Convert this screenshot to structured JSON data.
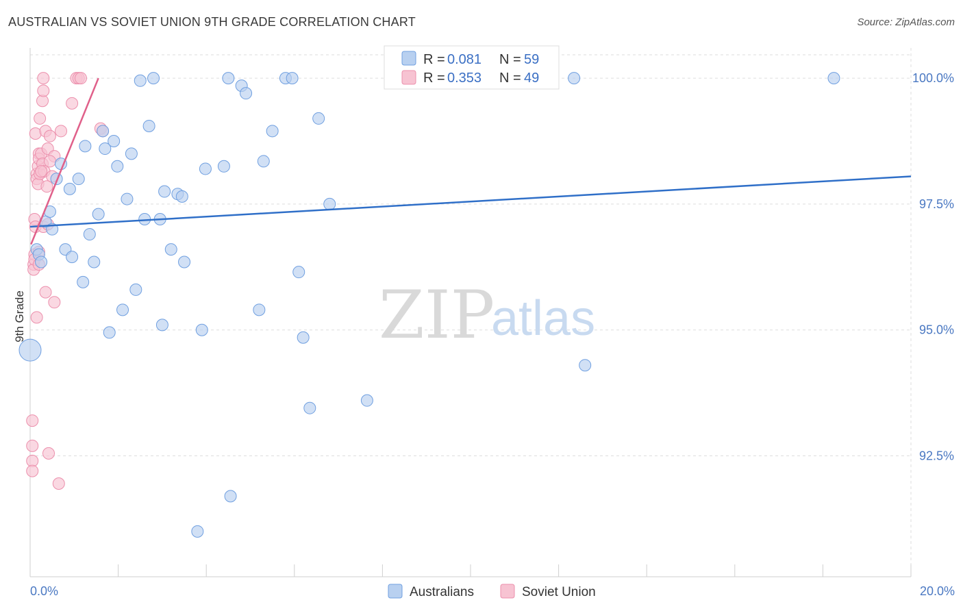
{
  "header": {
    "title": "AUSTRALIAN VS SOVIET UNION 9TH GRADE CORRELATION CHART",
    "source": "Source: ZipAtlas.com"
  },
  "watermark": {
    "zip": "ZIP",
    "atlas": "atlas"
  },
  "legend": {
    "rows": [
      {
        "r_label": "R = ",
        "r_value": "0.081",
        "n_label": "N = ",
        "n_value": "59"
      },
      {
        "r_label": "R = ",
        "r_value": "0.353",
        "n_label": "N = ",
        "n_value": "49"
      }
    ]
  },
  "bottom_legend": {
    "series1": "Australians",
    "series2": "Soviet Union"
  },
  "colors": {
    "blue_fill": "#b8d0f0",
    "blue_stroke": "#6f9fe0",
    "blue_line": "#2f6fc8",
    "pink_fill": "#f7c3d2",
    "pink_stroke": "#ec8fac",
    "pink_line": "#e0608a",
    "grid": "#dddddd",
    "tick_text": "#4a78c2"
  },
  "chart_data": {
    "type": "scatter",
    "title": "AUSTRALIAN VS SOVIET UNION 9TH GRADE CORRELATION CHART",
    "xlabel": "",
    "ylabel": "9th Grade",
    "xlim": [
      0,
      20
    ],
    "ylim": [
      90.1,
      100.6
    ],
    "x_tick_labels": [
      "0.0%",
      "20.0%"
    ],
    "y_ticks": [
      {
        "value": 100.0,
        "label": "100.0%"
      },
      {
        "value": 97.5,
        "label": "97.5%"
      },
      {
        "value": 95.0,
        "label": "95.0%"
      },
      {
        "value": 92.5,
        "label": "92.5%"
      }
    ],
    "series": [
      {
        "name": "Australians",
        "R": 0.081,
        "N": 59,
        "trend": {
          "x": [
            0,
            20
          ],
          "y": [
            97.05,
            98.05
          ]
        },
        "points": [
          {
            "x": 0.0,
            "y": 94.6,
            "big": true
          },
          {
            "x": 0.15,
            "y": 96.6
          },
          {
            "x": 0.2,
            "y": 96.5
          },
          {
            "x": 0.25,
            "y": 96.35
          },
          {
            "x": 0.35,
            "y": 97.15
          },
          {
            "x": 0.45,
            "y": 97.35
          },
          {
            "x": 0.5,
            "y": 97.0
          },
          {
            "x": 0.6,
            "y": 98.0
          },
          {
            "x": 0.7,
            "y": 98.3
          },
          {
            "x": 0.8,
            "y": 96.6
          },
          {
            "x": 0.9,
            "y": 97.8
          },
          {
            "x": 0.95,
            "y": 96.45
          },
          {
            "x": 1.1,
            "y": 98.0
          },
          {
            "x": 1.2,
            "y": 95.95
          },
          {
            "x": 1.25,
            "y": 98.65
          },
          {
            "x": 1.35,
            "y": 96.9
          },
          {
            "x": 1.45,
            "y": 96.35
          },
          {
            "x": 1.55,
            "y": 97.3
          },
          {
            "x": 1.65,
            "y": 98.95
          },
          {
            "x": 1.7,
            "y": 98.6
          },
          {
            "x": 1.8,
            "y": 94.95
          },
          {
            "x": 1.9,
            "y": 98.75
          },
          {
            "x": 1.98,
            "y": 98.25
          },
          {
            "x": 2.1,
            "y": 95.4
          },
          {
            "x": 2.2,
            "y": 97.6
          },
          {
            "x": 2.3,
            "y": 98.5
          },
          {
            "x": 2.4,
            "y": 95.8
          },
          {
            "x": 2.5,
            "y": 99.95
          },
          {
            "x": 2.6,
            "y": 97.2
          },
          {
            "x": 2.7,
            "y": 99.05
          },
          {
            "x": 2.8,
            "y": 100.0
          },
          {
            "x": 2.95,
            "y": 97.2
          },
          {
            "x": 3.0,
            "y": 95.1
          },
          {
            "x": 3.05,
            "y": 97.75
          },
          {
            "x": 3.2,
            "y": 96.6
          },
          {
            "x": 3.35,
            "y": 97.7
          },
          {
            "x": 3.45,
            "y": 97.65
          },
          {
            "x": 3.5,
            "y": 96.35
          },
          {
            "x": 3.8,
            "y": 91.0
          },
          {
            "x": 3.9,
            "y": 95.0
          },
          {
            "x": 3.98,
            "y": 98.2
          },
          {
            "x": 4.4,
            "y": 98.25
          },
          {
            "x": 4.5,
            "y": 100.0
          },
          {
            "x": 4.55,
            "y": 91.7
          },
          {
            "x": 4.8,
            "y": 99.85
          },
          {
            "x": 4.9,
            "y": 99.7
          },
          {
            "x": 5.2,
            "y": 95.4
          },
          {
            "x": 5.3,
            "y": 98.35
          },
          {
            "x": 5.5,
            "y": 98.95
          },
          {
            "x": 5.8,
            "y": 100.0
          },
          {
            "x": 5.95,
            "y": 100.0
          },
          {
            "x": 6.1,
            "y": 96.15
          },
          {
            "x": 6.2,
            "y": 94.85
          },
          {
            "x": 6.35,
            "y": 93.45
          },
          {
            "x": 6.55,
            "y": 99.2
          },
          {
            "x": 6.8,
            "y": 97.5
          },
          {
            "x": 7.65,
            "y": 93.6
          },
          {
            "x": 12.35,
            "y": 100.0
          },
          {
            "x": 12.6,
            "y": 94.3
          },
          {
            "x": 18.25,
            "y": 100.0
          }
        ]
      },
      {
        "name": "Soviet Union",
        "R": 0.353,
        "N": 49,
        "trend": {
          "x": [
            0.02,
            1.55
          ],
          "y": [
            96.7,
            100.0
          ]
        },
        "points": [
          {
            "x": 0.05,
            "y": 93.2
          },
          {
            "x": 0.05,
            "y": 92.7
          },
          {
            "x": 0.05,
            "y": 92.4
          },
          {
            "x": 0.05,
            "y": 92.2
          },
          {
            "x": 0.08,
            "y": 96.3
          },
          {
            "x": 0.08,
            "y": 96.2
          },
          {
            "x": 0.1,
            "y": 97.2
          },
          {
            "x": 0.1,
            "y": 96.5
          },
          {
            "x": 0.1,
            "y": 96.4
          },
          {
            "x": 0.12,
            "y": 98.9
          },
          {
            "x": 0.12,
            "y": 97.05
          },
          {
            "x": 0.15,
            "y": 98.1
          },
          {
            "x": 0.15,
            "y": 98.0
          },
          {
            "x": 0.15,
            "y": 95.25
          },
          {
            "x": 0.18,
            "y": 98.25
          },
          {
            "x": 0.18,
            "y": 97.9
          },
          {
            "x": 0.2,
            "y": 98.5
          },
          {
            "x": 0.2,
            "y": 98.4
          },
          {
            "x": 0.2,
            "y": 96.55
          },
          {
            "x": 0.2,
            "y": 96.3
          },
          {
            "x": 0.22,
            "y": 99.2
          },
          {
            "x": 0.22,
            "y": 98.1
          },
          {
            "x": 0.25,
            "y": 98.5
          },
          {
            "x": 0.28,
            "y": 99.55
          },
          {
            "x": 0.28,
            "y": 98.3
          },
          {
            "x": 0.3,
            "y": 100.0
          },
          {
            "x": 0.3,
            "y": 99.75
          },
          {
            "x": 0.3,
            "y": 97.05
          },
          {
            "x": 0.32,
            "y": 98.15
          },
          {
            "x": 0.35,
            "y": 98.95
          },
          {
            "x": 0.35,
            "y": 95.75
          },
          {
            "x": 0.38,
            "y": 97.85
          },
          {
            "x": 0.4,
            "y": 97.1
          },
          {
            "x": 0.42,
            "y": 92.55
          },
          {
            "x": 0.4,
            "y": 98.6
          },
          {
            "x": 0.45,
            "y": 98.85
          },
          {
            "x": 0.5,
            "y": 98.05
          },
          {
            "x": 0.55,
            "y": 98.45
          },
          {
            "x": 0.55,
            "y": 95.55
          },
          {
            "x": 0.65,
            "y": 91.95
          },
          {
            "x": 0.7,
            "y": 98.95
          },
          {
            "x": 0.95,
            "y": 99.5
          },
          {
            "x": 1.05,
            "y": 100.0
          },
          {
            "x": 1.1,
            "y": 100.0
          },
          {
            "x": 1.15,
            "y": 100.0
          },
          {
            "x": 1.6,
            "y": 99.0
          },
          {
            "x": 1.65,
            "y": 98.95
          },
          {
            "x": 0.45,
            "y": 98.35
          },
          {
            "x": 0.25,
            "y": 98.15
          }
        ]
      }
    ]
  }
}
